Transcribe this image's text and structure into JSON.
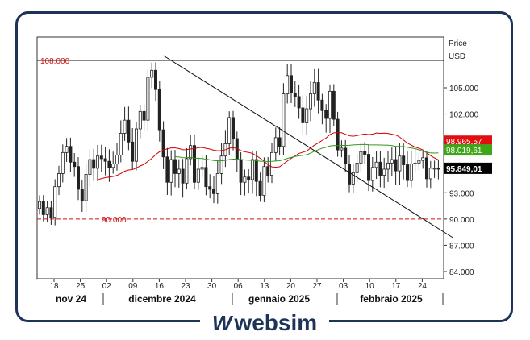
{
  "brand": {
    "name": "websim",
    "mark": "W"
  },
  "colors": {
    "frame": "#1d3357",
    "ma_short": "#d10000",
    "ma_long": "#2e9a1a",
    "last": "#000000",
    "level": "#d01010"
  },
  "chart_data": {
    "type": "candlestick",
    "price_label": "Price",
    "currency": "USD",
    "ylim": [
      83200,
      104200
    ],
    "y_ticks": [
      "105.000",
      "102.000",
      "99.000",
      "96.000",
      "93.000",
      "90.000",
      "87.000",
      "84.000"
    ],
    "y_tick_values": [
      105000,
      102000,
      99000,
      96000,
      93000,
      90000,
      87000,
      84000
    ],
    "x_ticks": [
      "18",
      "25",
      "02",
      "09",
      "16",
      "23",
      "30",
      "06",
      "13",
      "20",
      "27",
      "03",
      "10",
      "17",
      "24"
    ],
    "months": [
      "nov 24",
      "dicembre 2024",
      "gennaio 2025",
      "febbraio 2025"
    ],
    "levels": [
      {
        "label": "108.000",
        "value": 108000,
        "style": "solid"
      },
      {
        "label": "90.000",
        "value": 90000,
        "style": "dashed"
      }
    ],
    "trendline": {
      "from": {
        "x": "2024-12-17",
        "y": 108400
      },
      "to": {
        "x": "2025-03-02",
        "y": 87800
      }
    },
    "indicators": [
      {
        "name": "ma-short",
        "label": "98.965,57",
        "value": 98965.57
      },
      {
        "name": "ma-long",
        "label": "98.019,61",
        "value": 98019.61
      }
    ],
    "last_price": {
      "label": "95.849,01",
      "value": 95849.01
    },
    "start_date": "2024-11-15",
    "close": [
      92000,
      90500,
      91300,
      90200,
      93700,
      95200,
      97600,
      98300,
      96500,
      96000,
      93400,
      92100,
      95100,
      96800,
      95800,
      97200,
      96900,
      96600,
      95900,
      96300,
      97300,
      99800,
      101300,
      98800,
      96600,
      100300,
      102300,
      101300,
      106200,
      107000,
      104800,
      100200,
      97100,
      94200,
      96800,
      95200,
      95700,
      94100,
      96900,
      98400,
      94200,
      95700,
      95900,
      93700,
      93400,
      92900,
      95200,
      97200,
      98600,
      101600,
      99200,
      96800,
      94200,
      94800,
      94500,
      96800,
      94300,
      92700,
      96000,
      95000,
      97600,
      99300,
      98300,
      104300,
      106400,
      104400,
      104000,
      102700,
      101000,
      102600,
      104300,
      105600,
      103600,
      102400,
      101500,
      104600,
      101400,
      97900,
      98100,
      96300,
      94000,
      95300,
      96400,
      97700,
      97400,
      94400,
      95900,
      96500,
      95000,
      95700,
      96400,
      96800,
      95500,
      97200,
      96200,
      94400,
      96300,
      96400,
      96700,
      97000,
      94600,
      95800,
      95800,
      95700
    ]
  }
}
